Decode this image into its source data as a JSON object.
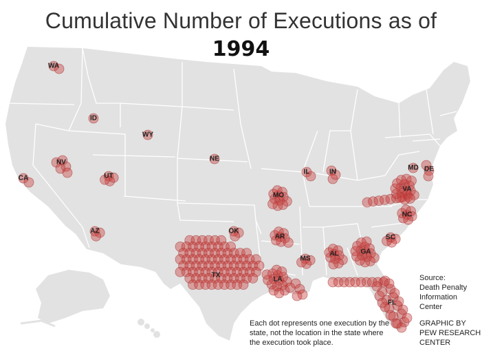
{
  "title": {
    "line1": "Cumulative Number of Executions as of",
    "line2": "1994"
  },
  "note": "Each dot represents one execution by the state, not the location in the state where the execution took place.",
  "source": {
    "label": "Source:",
    "name": "Death Penalty Information Center"
  },
  "credit": "GRAPHIC BY PEW RESEARCH CENTER",
  "colors": {
    "land": "#e2e2e2",
    "border": "#ffffff",
    "dot": "#c9403d",
    "background": "#ffffff"
  },
  "states": [
    {
      "abbr": "WA",
      "executions": 2
    },
    {
      "abbr": "ID",
      "executions": 1
    },
    {
      "abbr": "WY",
      "executions": 1
    },
    {
      "abbr": "NE",
      "executions": 1
    },
    {
      "abbr": "CA",
      "executions": 2
    },
    {
      "abbr": "NV",
      "executions": 5
    },
    {
      "abbr": "UT",
      "executions": 4
    },
    {
      "abbr": "AZ",
      "executions": 3
    },
    {
      "abbr": "OK",
      "executions": 3
    },
    {
      "abbr": "TX",
      "executions": 85
    },
    {
      "abbr": "MO",
      "executions": 11
    },
    {
      "abbr": "AR",
      "executions": 8
    },
    {
      "abbr": "LA",
      "executions": 21
    },
    {
      "abbr": "MS",
      "executions": 4
    },
    {
      "abbr": "AL",
      "executions": 10
    },
    {
      "abbr": "GA",
      "executions": 16
    },
    {
      "abbr": "FL",
      "executions": 33
    },
    {
      "abbr": "SC",
      "executions": 4
    },
    {
      "abbr": "NC",
      "executions": 7
    },
    {
      "abbr": "VA",
      "executions": 25
    },
    {
      "abbr": "MD",
      "executions": 1
    },
    {
      "abbr": "DE",
      "executions": 3
    },
    {
      "abbr": "IL",
      "executions": 2
    },
    {
      "abbr": "IN",
      "executions": 3
    }
  ]
}
